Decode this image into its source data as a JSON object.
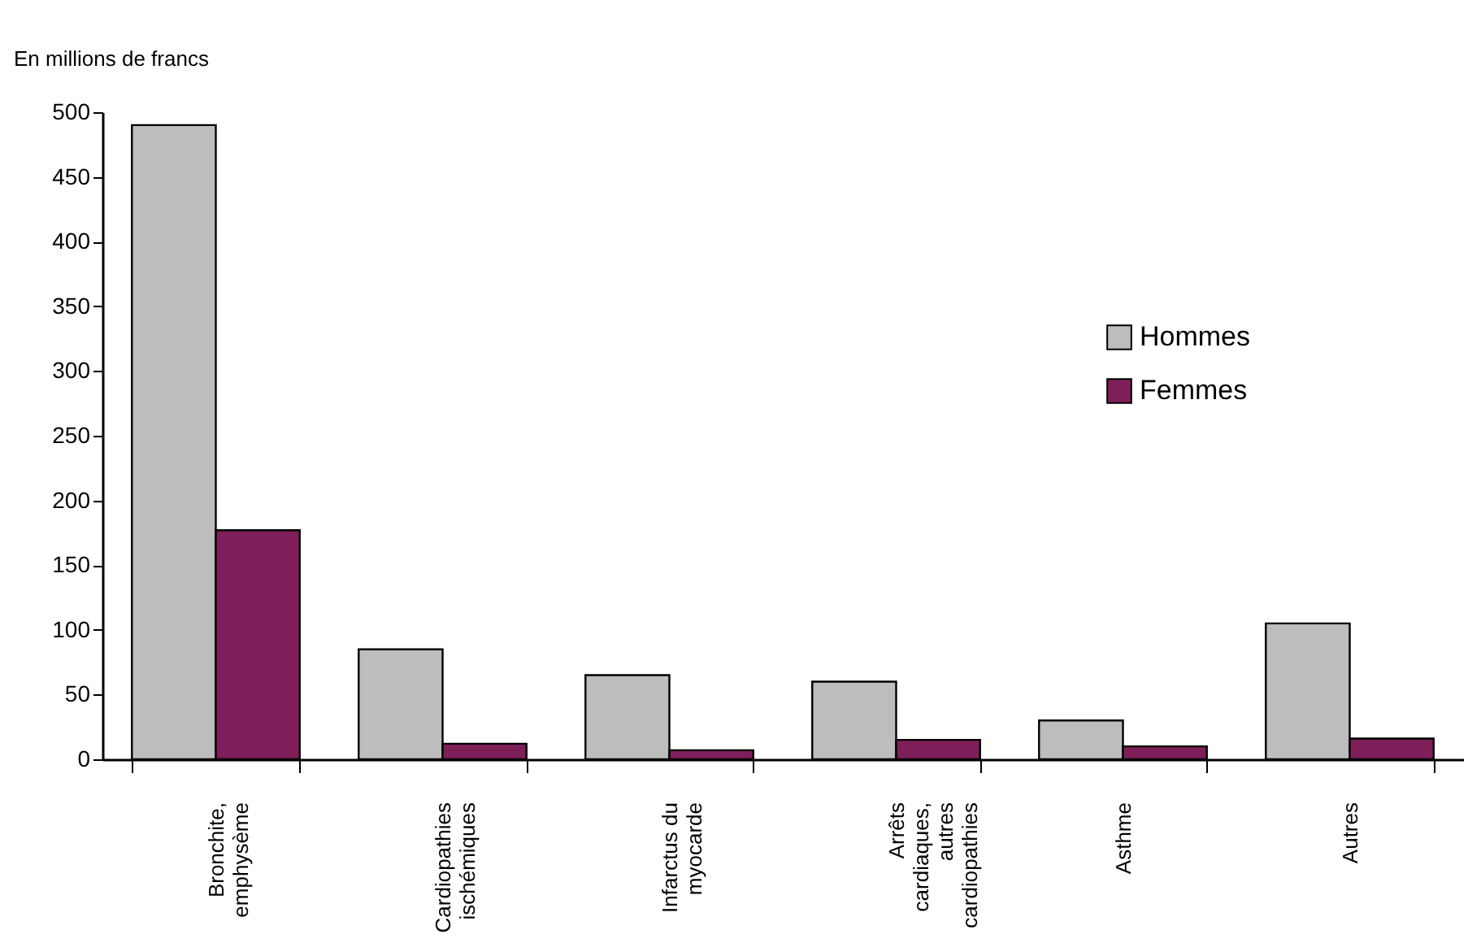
{
  "chart_data": {
    "type": "bar",
    "ylabel": "En millions de francs",
    "categories": [
      "Bronchite,\nemphysème",
      "Cardiopathies\nischémiques",
      "Infarctus du\nmyocarde",
      "Arrêts\ncardiaques,\nautres\ncardiopathies",
      "Asthme",
      "Autres"
    ],
    "series": [
      {
        "name": "Hommes",
        "color": "#bdbdbd",
        "values": [
          490,
          85,
          65,
          60,
          30,
          105
        ]
      },
      {
        "name": "Femmes",
        "color": "#7f1f5a",
        "values": [
          177,
          12,
          7,
          15,
          10,
          16
        ]
      }
    ],
    "ylim": [
      0,
      500
    ],
    "yticks": [
      0,
      50,
      100,
      150,
      200,
      250,
      300,
      350,
      400,
      450,
      500
    ],
    "grid": false,
    "legend": "top right"
  }
}
